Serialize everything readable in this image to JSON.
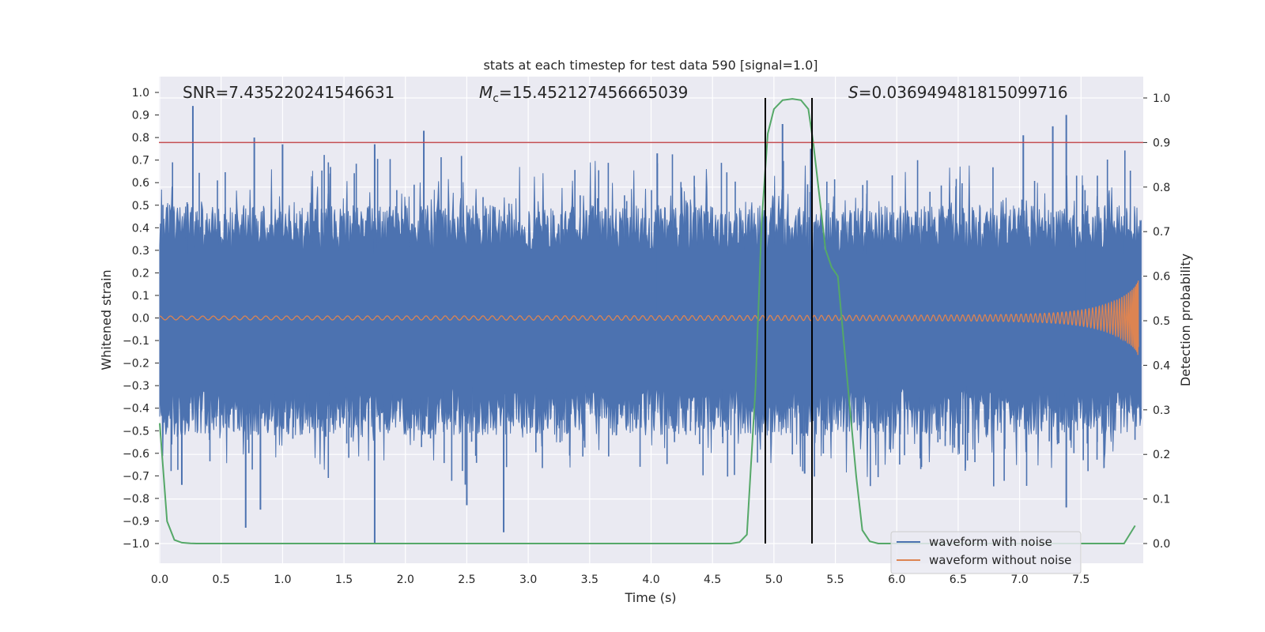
{
  "chart_data": {
    "type": "line",
    "title": "stats at each timestep for test data 590 [signal=1.0]",
    "xlabel": "Time (s)",
    "ylabel": "Whitened strain",
    "y2label": "Detection probability",
    "xlim": [
      0.0,
      8.0
    ],
    "ylim": [
      -1.09,
      1.05
    ],
    "y2lim": [
      -0.05,
      1.04
    ],
    "x_ticks": [
      0.0,
      0.5,
      1.0,
      1.5,
      2.0,
      2.5,
      3.0,
      3.5,
      4.0,
      4.5,
      5.0,
      5.5,
      6.0,
      6.5,
      7.0,
      7.5
    ],
    "x_tick_labels": [
      "0.0",
      "0.5",
      "1.0",
      "1.5",
      "2.0",
      "2.5",
      "3.0",
      "3.5",
      "4.0",
      "4.5",
      "5.0",
      "5.5",
      "6.0",
      "6.5",
      "7.0",
      "7.5"
    ],
    "y_ticks": [
      1.0,
      0.9,
      0.8,
      0.7,
      0.6,
      0.5,
      0.4,
      0.3,
      0.2,
      0.1,
      0.0,
      -0.1,
      -0.2,
      -0.3,
      -0.4,
      -0.5,
      -0.6,
      -0.7,
      -0.8,
      -0.9,
      -1.0
    ],
    "y_tick_labels": [
      "1.0",
      "0.9",
      "0.8",
      "0.7",
      "0.6",
      "0.5",
      "0.4",
      "0.3",
      "0.2",
      "0.1",
      "0.0",
      "−0.1",
      "−0.2",
      "−0.3",
      "−0.4",
      "−0.5",
      "−0.6",
      "−0.7",
      "−0.8",
      "−0.9",
      "−1.0"
    ],
    "y2_ticks": [
      1.0,
      0.9,
      0.8,
      0.7,
      0.6,
      0.5,
      0.4,
      0.3,
      0.2,
      0.1,
      0.0
    ],
    "y2_tick_labels": [
      "1.0",
      "0.9",
      "0.8",
      "0.7",
      "0.6",
      "0.5",
      "0.4",
      "0.3",
      "0.2",
      "0.1",
      "0.0"
    ],
    "annotations": {
      "snr": "SNR=7.435220241546631",
      "mc_symbol": "M",
      "mc_sub": "c",
      "mc_value": "=15.452127456665039",
      "s_symbol": "S",
      "s_value": "=0.036949481815099716"
    },
    "threshold_y2": 0.9,
    "merger_window_s": [
      4.93,
      5.31
    ],
    "detection_probability": {
      "x": [
        0.0,
        0.06,
        0.12,
        0.18,
        0.25,
        0.3,
        0.5,
        1.0,
        2.0,
        3.0,
        4.0,
        4.5,
        4.65,
        4.72,
        4.78,
        4.85,
        4.9,
        4.95,
        5.0,
        5.07,
        5.15,
        5.22,
        5.28,
        5.32,
        5.37,
        5.42,
        5.47,
        5.52,
        5.57,
        5.62,
        5.67,
        5.72,
        5.78,
        5.85,
        6.0,
        7.0,
        7.85,
        7.94
      ],
      "y": [
        0.27,
        0.05,
        0.008,
        0.002,
        0.0005,
        0.0,
        0.0,
        0.0,
        0.0,
        0.0,
        0.0,
        0.0,
        0.0,
        0.003,
        0.02,
        0.35,
        0.72,
        0.92,
        0.975,
        0.995,
        0.998,
        0.995,
        0.975,
        0.9,
        0.78,
        0.66,
        0.62,
        0.6,
        0.45,
        0.3,
        0.15,
        0.03,
        0.005,
        0.0,
        0.0,
        0.0,
        0.0,
        0.04
      ]
    },
    "spikes": {
      "positive": [
        {
          "x": 0.27,
          "y": 0.94
        },
        {
          "x": 0.77,
          "y": 0.8
        },
        {
          "x": 1.0,
          "y": 0.77
        },
        {
          "x": 1.75,
          "y": 0.77
        },
        {
          "x": 2.15,
          "y": 0.83
        },
        {
          "x": 4.05,
          "y": 0.73
        },
        {
          "x": 5.07,
          "y": 0.86
        },
        {
          "x": 7.03,
          "y": 0.81
        },
        {
          "x": 7.27,
          "y": 0.85
        },
        {
          "x": 7.38,
          "y": 0.9
        },
        {
          "x": 5.3,
          "y": 0.75
        }
      ],
      "negative": [
        {
          "x": 0.18,
          "y": -0.74
        },
        {
          "x": 0.7,
          "y": -0.93
        },
        {
          "x": 0.82,
          "y": -0.85
        },
        {
          "x": 1.75,
          "y": -1.0
        },
        {
          "x": 2.5,
          "y": -0.83
        },
        {
          "x": 2.8,
          "y": -0.95
        },
        {
          "x": 5.25,
          "y": -0.69
        },
        {
          "x": 7.38,
          "y": -0.84
        }
      ]
    },
    "series": [
      {
        "name": "waveform with noise",
        "color": "#4c72b0"
      },
      {
        "name": "waveform without noise",
        "color": "#dd8452"
      },
      {
        "name": "detection probability",
        "color": "#55a868"
      }
    ],
    "threshold_color": "#c44e52",
    "window_color": "#000000",
    "legend": [
      "waveform with noise",
      "waveform without noise"
    ],
    "legend_position": "lower-right",
    "grid": true
  }
}
